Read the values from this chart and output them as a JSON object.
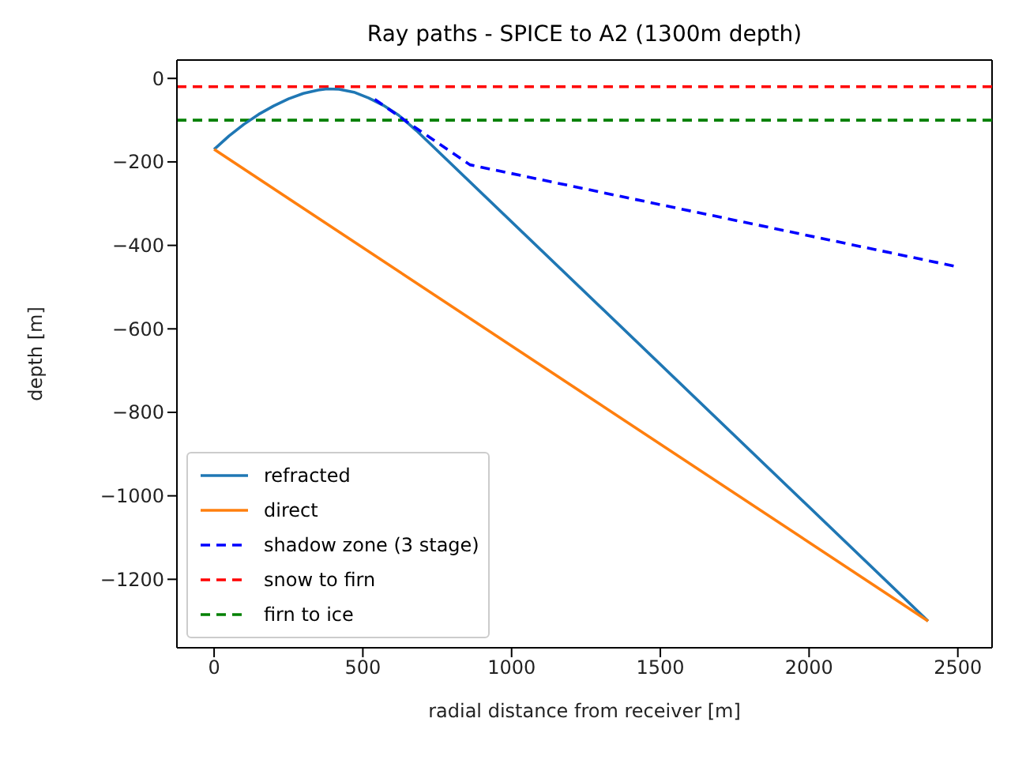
{
  "chart_data": {
    "type": "line",
    "title": "Ray paths - SPICE to A2 (1300m depth)",
    "xlabel": "radial distance from receiver [m]",
    "ylabel": "depth [m]",
    "xlim": [
      -125,
      2615
    ],
    "ylim": [
      -1364,
      44
    ],
    "xticks": [
      0,
      500,
      1000,
      1500,
      2000,
      2500
    ],
    "yticks": [
      0,
      -200,
      -400,
      -600,
      -800,
      -1000,
      -1200
    ],
    "legend": "bottom left",
    "marker": "none",
    "series": [
      {
        "name": "refracted",
        "color": "#1f77b4",
        "line_style": "solid",
        "x": [
          0,
          50,
          100,
          150,
          200,
          250,
          300,
          350,
          380,
          420,
          470,
          520,
          570,
          620,
          680,
          2400
        ],
        "values": [
          -170,
          -138,
          -110,
          -86,
          -66,
          -49,
          -36,
          -28,
          -25,
          -26,
          -33,
          -47,
          -65,
          -88,
          -125,
          -1300
        ]
      },
      {
        "name": "direct",
        "color": "#ff7f0e",
        "line_style": "solid",
        "x": [
          0,
          2400
        ],
        "values": [
          -170,
          -1300
        ]
      },
      {
        "name": "shadow zone (3 stage)",
        "color": "#0000ff",
        "line_style": "dashed",
        "x": [
          540,
          650,
          860,
          2490
        ],
        "values": [
          -50,
          -105,
          -207,
          -450
        ]
      }
    ],
    "ref_lines": [
      {
        "axis": "y",
        "value": -20,
        "label": "snow to firn",
        "color": "#ff0000",
        "line_style": "dashed"
      },
      {
        "axis": "y",
        "value": -100,
        "label": "firn to ice",
        "color": "#008000",
        "line_style": "dashed"
      }
    ]
  }
}
